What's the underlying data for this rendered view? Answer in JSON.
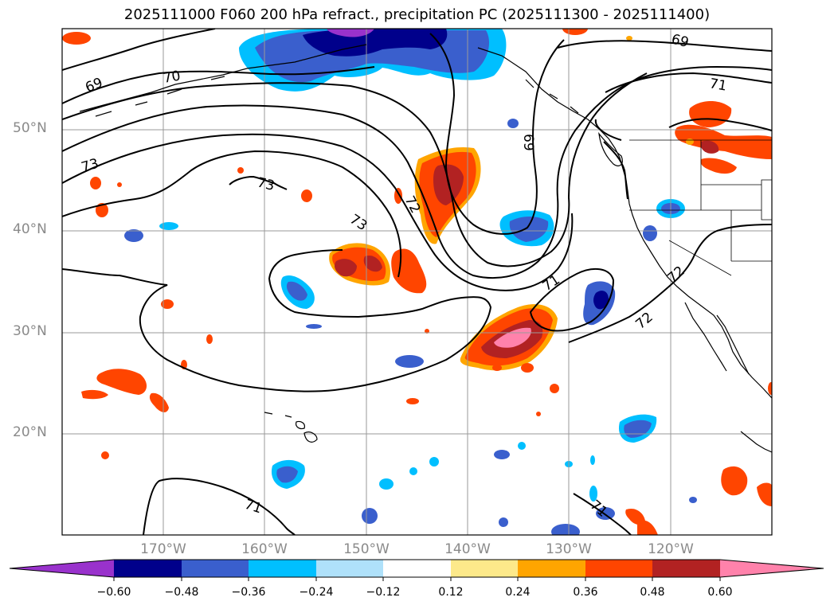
{
  "title": "2025111000 F060 200 hPa refract., precipitation PC (2025111300 - 2025111400)",
  "lat_labels": [
    "50°N",
    "40°N",
    "30°N",
    "20°N"
  ],
  "lon_labels": [
    "170°W",
    "160°W",
    "150°W",
    "140°W",
    "130°W",
    "120°W"
  ],
  "colorbar": {
    "ticks": [
      "−0.60",
      "−0.48",
      "−0.36",
      "−0.24",
      "−0.12",
      "0.12",
      "0.24",
      "0.36",
      "0.48",
      "0.60"
    ],
    "colors": [
      "#9932cc",
      "#00008b",
      "#3a5fcd",
      "#00bfff",
      "#afe1fa",
      "#ffffff",
      "#fde98a",
      "#ffa500",
      "#ff4500",
      "#b22222",
      "#ff82ab"
    ]
  },
  "contour_labels": [
    "69",
    "70",
    "73",
    "73",
    "73",
    "72",
    "69",
    "69",
    "71",
    "71",
    "72",
    "71",
    "71",
    "72"
  ]
}
